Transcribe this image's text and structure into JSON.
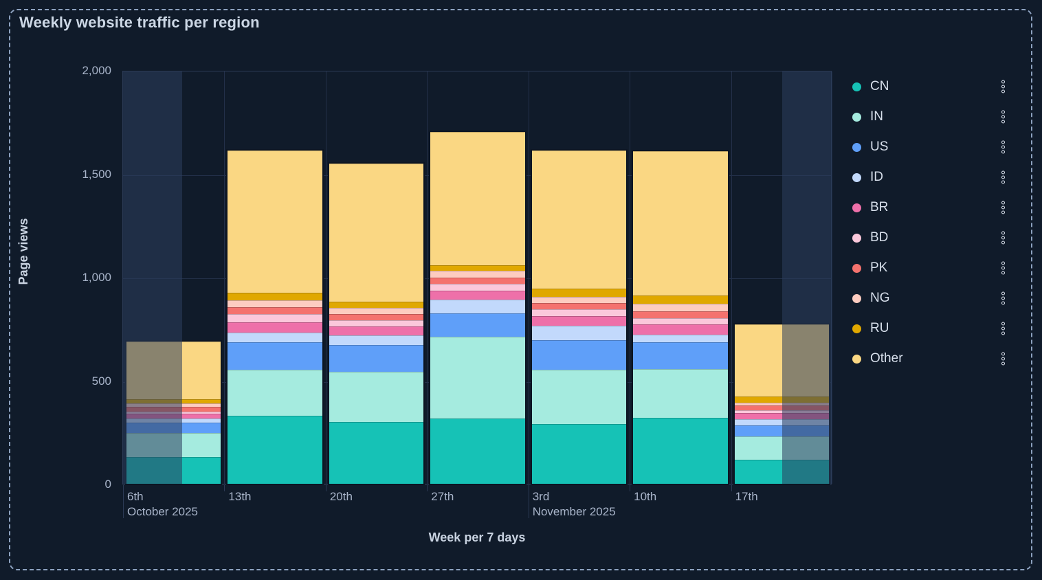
{
  "panel": {
    "title": "Weekly website traffic per region"
  },
  "theme": {
    "panel_bg": "#101b2a",
    "dashed_border": "#8da2c0",
    "grid": "#233049",
    "axis_border": "#2c3a55",
    "title_text": "#ccd7e5",
    "muted_text": "#a9b5ca",
    "legend_text": "#d7dfeb",
    "out_of_range_overlay": "rgba(44,62,92,0.55)"
  },
  "legend": {
    "position": "right",
    "menu_icon": "three-dots-vertical-kebab"
  },
  "chart_data": {
    "type": "bar",
    "stacked": true,
    "title": "Weekly website traffic per region",
    "xlabel": "Week per 7 days",
    "ylabel": "Page views",
    "ylim": [
      0,
      2000
    ],
    "grid": true,
    "legend_position": "right",
    "yticks": [
      {
        "value": 0,
        "label": "0"
      },
      {
        "value": 500,
        "label": "500"
      },
      {
        "value": 1000,
        "label": "1,000"
      },
      {
        "value": 1500,
        "label": "1,500"
      },
      {
        "value": 2000,
        "label": "2,000"
      }
    ],
    "categories": [
      {
        "label": "6th",
        "month": "October 2025"
      },
      {
        "label": "13th"
      },
      {
        "label": "20th"
      },
      {
        "label": "27th"
      },
      {
        "label": "3rd",
        "month": "November 2025"
      },
      {
        "label": "10th"
      },
      {
        "label": "17th"
      }
    ],
    "series": [
      {
        "name": "CN",
        "color": "#16c2b6",
        "values": [
          130,
          330,
          300,
          315,
          290,
          320,
          115
        ]
      },
      {
        "name": "IN",
        "color": "#a5ebdf",
        "values": [
          115,
          220,
          240,
          395,
          260,
          235,
          115
        ]
      },
      {
        "name": "US",
        "color": "#5f9ff9",
        "values": [
          50,
          135,
          132,
          113,
          145,
          130,
          53
        ]
      },
      {
        "name": "ID",
        "color": "#c2d9fc",
        "values": [
          20,
          47,
          47,
          67,
          70,
          37,
          30
        ]
      },
      {
        "name": "BR",
        "color": "#ee70a9",
        "values": [
          23,
          50,
          40,
          43,
          47,
          47,
          30
        ]
      },
      {
        "name": "BD",
        "color": "#fbc8db",
        "values": [
          10,
          40,
          30,
          33,
          33,
          33,
          13
        ]
      },
      {
        "name": "PK",
        "color": "#f4726e",
        "values": [
          23,
          33,
          33,
          30,
          30,
          33,
          24
        ]
      },
      {
        "name": "NG",
        "color": "#fdccc0",
        "values": [
          17,
          33,
          30,
          33,
          30,
          37,
          13
        ]
      },
      {
        "name": "RU",
        "color": "#e0a800",
        "values": [
          20,
          37,
          30,
          27,
          40,
          37,
          30
        ]
      },
      {
        "name": "Other",
        "color": "#fad783",
        "values": [
          280,
          685,
          665,
          645,
          665,
          700,
          347
        ]
      }
    ],
    "out_of_range_shading": {
      "left_fraction": 0.0833,
      "right_fraction": 0.0707
    }
  }
}
